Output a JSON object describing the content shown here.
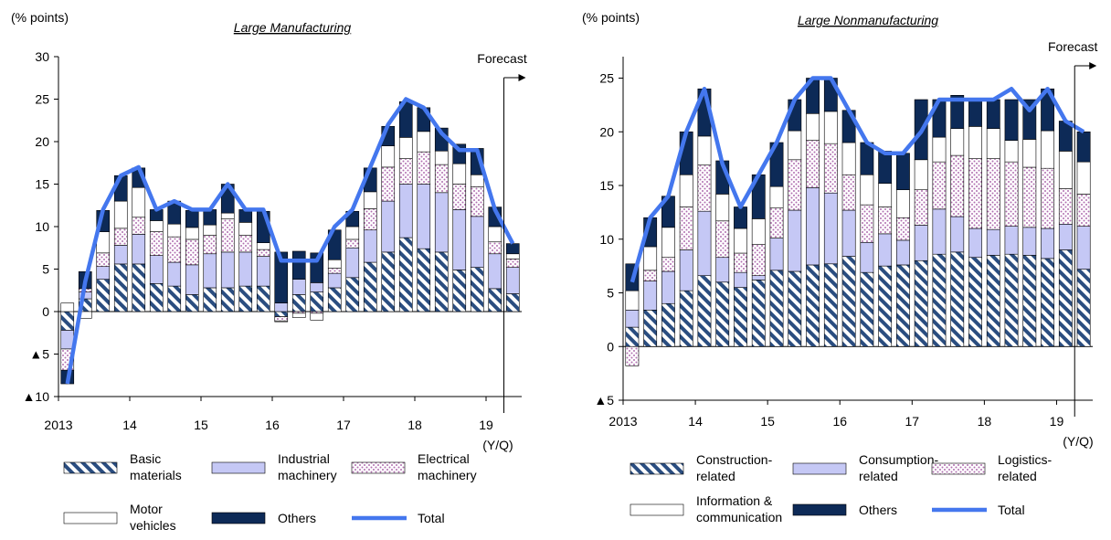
{
  "chart_data": [
    {
      "type": "bar",
      "stacked": true,
      "title": "Large Manufacturing",
      "ylabel": "(% points)",
      "xunit": "(Y/Q)",
      "ylim": [
        -10,
        30
      ],
      "yticks": [
        30,
        25,
        20,
        15,
        10,
        5,
        0,
        -5,
        -10
      ],
      "ytick_labels": [
        "30",
        "25",
        "20",
        "15",
        "10",
        "5",
        "0",
        "▲5",
        "▲10"
      ],
      "xticks": [
        {
          "label": "2013",
          "index": 0
        },
        {
          "label": "14",
          "index": 4
        },
        {
          "label": "15",
          "index": 8
        },
        {
          "label": "16",
          "index": 12
        },
        {
          "label": "17",
          "index": 16
        },
        {
          "label": "18",
          "index": 20
        },
        {
          "label": "19",
          "index": 24
        }
      ],
      "forecast_label": "Forecast",
      "forecast_start_index": 25,
      "categories": [
        "2013Q1",
        "2013Q2",
        "2013Q3",
        "2013Q4",
        "2014Q1",
        "2014Q2",
        "2014Q3",
        "2014Q4",
        "2015Q1",
        "2015Q2",
        "2015Q3",
        "2015Q4",
        "2016Q1",
        "2016Q2",
        "2016Q3",
        "2016Q4",
        "2017Q1",
        "2017Q2",
        "2017Q3",
        "2017Q4",
        "2018Q1",
        "2018Q2",
        "2018Q3",
        "2018Q4",
        "2019Q1",
        "2019Q2"
      ],
      "series": [
        {
          "name": "Basic\nmaterials",
          "key": "basic",
          "pattern": "hatch-navy",
          "values": [
            -2.2,
            1.5,
            3.8,
            5.6,
            5.6,
            3.3,
            3.0,
            2.0,
            2.8,
            2.8,
            3.0,
            3.0,
            -0.6,
            2.0,
            2.3,
            2.8,
            4.0,
            5.8,
            7.0,
            8.7,
            7.4,
            7.0,
            4.9,
            5.2,
            2.7,
            2.1
          ]
        },
        {
          "name": "Industrial\nmachinery",
          "key": "industrial",
          "pattern": "lavender",
          "values": [
            -2.2,
            0.8,
            1.5,
            2.2,
            3.5,
            3.3,
            2.8,
            3.5,
            4.0,
            4.2,
            4.0,
            3.5,
            1.0,
            1.8,
            1.1,
            1.7,
            3.5,
            3.8,
            6.0,
            6.3,
            7.6,
            7.0,
            7.1,
            6.0,
            4.1,
            3.1
          ]
        },
        {
          "name": "Electrical\nmachinery",
          "key": "electrical",
          "pattern": "dots",
          "values": [
            -2.5,
            0.4,
            1.6,
            2.0,
            2.0,
            2.8,
            3.0,
            3.0,
            2.2,
            3.9,
            2.0,
            0.8,
            -0.5,
            -0.2,
            -0.2,
            0.6,
            1.0,
            2.5,
            4.0,
            3.0,
            3.8,
            3.3,
            3.0,
            3.5,
            1.4,
            1.0
          ]
        },
        {
          "name": "Motor\nvehicles",
          "key": "motor",
          "pattern": "white",
          "values": [
            1.0,
            -0.8,
            2.5,
            3.2,
            3.5,
            1.3,
            1.5,
            1.4,
            1.2,
            0.7,
            1.5,
            0.8,
            -0.1,
            -0.5,
            -0.8,
            1.0,
            1.5,
            2.0,
            2.5,
            2.5,
            2.4,
            1.6,
            2.4,
            1.4,
            1.8,
            0.6
          ]
        },
        {
          "name": "Others",
          "key": "others",
          "pattern": "navy",
          "values": [
            -1.6,
            2.0,
            2.5,
            3.0,
            2.3,
            1.3,
            2.7,
            2.0,
            1.8,
            3.4,
            1.5,
            3.7,
            6.0,
            3.3,
            3.5,
            3.5,
            1.8,
            2.8,
            2.3,
            4.2,
            2.8,
            2.7,
            2.3,
            3.1,
            2.3,
            1.2
          ]
        }
      ],
      "total": {
        "name": "Total",
        "values": [
          -8.5,
          3.5,
          12.0,
          16.0,
          17.0,
          12.0,
          13.0,
          12.0,
          12.0,
          15.0,
          12.0,
          12.0,
          6.0,
          6.0,
          6.0,
          10.0,
          12.0,
          17.0,
          22.0,
          25.0,
          24.0,
          21.0,
          19.0,
          19.0,
          12.0,
          8.0
        ]
      },
      "legend": [
        "Basic\nmaterials",
        "Industrial\nmachinery",
        "Electrical\nmachinery",
        "Motor\nvehicles",
        "Others",
        "Total"
      ],
      "colors": {
        "navy": "#0d2a57",
        "lavender": "#c5c8f5",
        "dots": "#b070b0",
        "line": "#4477ee",
        "hatch": "#2a4d80"
      }
    },
    {
      "type": "bar",
      "stacked": true,
      "title": "Large Nonmanufacturing",
      "ylabel": "(% points)",
      "xunit": "(Y/Q)",
      "ylim": [
        -5,
        27
      ],
      "yticks": [
        25,
        20,
        15,
        10,
        5,
        0,
        -5
      ],
      "ytick_labels": [
        "25",
        "20",
        "15",
        "10",
        "5",
        "0",
        "▲5"
      ],
      "xticks": [
        {
          "label": "2013",
          "index": 0
        },
        {
          "label": "14",
          "index": 4
        },
        {
          "label": "15",
          "index": 8
        },
        {
          "label": "16",
          "index": 12
        },
        {
          "label": "17",
          "index": 16
        },
        {
          "label": "18",
          "index": 20
        },
        {
          "label": "19",
          "index": 24
        }
      ],
      "forecast_label": "Forecast",
      "forecast_start_index": 25,
      "categories": [
        "2013Q1",
        "2013Q2",
        "2013Q3",
        "2013Q4",
        "2014Q1",
        "2014Q2",
        "2014Q3",
        "2014Q4",
        "2015Q1",
        "2015Q2",
        "2015Q3",
        "2015Q4",
        "2016Q1",
        "2016Q2",
        "2016Q3",
        "2016Q4",
        "2017Q1",
        "2017Q2",
        "2017Q3",
        "2017Q4",
        "2018Q1",
        "2018Q2",
        "2018Q3",
        "2018Q4",
        "2019Q1",
        "2019Q2"
      ],
      "series": [
        {
          "name": "Construction-\nrelated",
          "key": "construction",
          "pattern": "hatch-navy",
          "values": [
            1.8,
            3.4,
            4.0,
            5.2,
            6.6,
            6.0,
            5.5,
            6.2,
            7.1,
            7.0,
            7.6,
            7.7,
            8.4,
            6.9,
            7.5,
            7.6,
            8.0,
            8.6,
            8.8,
            8.3,
            8.5,
            8.6,
            8.5,
            8.2,
            9.0,
            7.2
          ]
        },
        {
          "name": "Consumption-\nrelated",
          "key": "consumption",
          "pattern": "lavender",
          "values": [
            1.6,
            2.7,
            3.0,
            3.8,
            6.0,
            2.3,
            1.4,
            0.4,
            3.0,
            5.7,
            7.2,
            6.6,
            4.3,
            2.8,
            3.0,
            2.3,
            3.3,
            4.2,
            3.3,
            2.7,
            2.4,
            2.6,
            2.6,
            2.8,
            2.4,
            4.0
          ]
        },
        {
          "name": "Logistics-\nrelated",
          "key": "logistics",
          "pattern": "dots",
          "values": [
            -1.8,
            1.0,
            1.3,
            4.0,
            4.3,
            3.4,
            1.8,
            2.9,
            2.8,
            4.7,
            4.4,
            4.6,
            3.3,
            3.5,
            2.5,
            2.1,
            3.3,
            4.4,
            5.7,
            6.5,
            6.6,
            6.0,
            5.6,
            5.6,
            3.3,
            3.0
          ]
        },
        {
          "name": "Information &\ncommunication",
          "key": "info",
          "pattern": "white",
          "values": [
            1.8,
            2.2,
            2.8,
            3.0,
            2.7,
            2.5,
            2.3,
            2.4,
            2.0,
            2.7,
            2.5,
            3.0,
            3.0,
            2.8,
            2.2,
            2.6,
            2.8,
            2.3,
            2.5,
            3.0,
            2.8,
            2.0,
            2.6,
            3.5,
            3.5,
            3.0
          ]
        },
        {
          "name": "Others",
          "key": "others",
          "pattern": "navy",
          "values": [
            2.5,
            2.7,
            2.9,
            4.0,
            4.4,
            3.1,
            2.0,
            4.1,
            4.1,
            2.9,
            3.3,
            3.1,
            3.0,
            3.0,
            3.0,
            3.4,
            5.6,
            3.5,
            3.1,
            2.5,
            2.7,
            3.8,
            3.7,
            3.9,
            2.8,
            2.8
          ]
        }
      ],
      "total": {
        "name": "Total",
        "values": [
          6.0,
          12.0,
          14.0,
          20.0,
          24.0,
          17.0,
          13.0,
          16.0,
          19.0,
          23.0,
          25.0,
          25.0,
          22.0,
          19.0,
          18.0,
          18.0,
          20.0,
          23.0,
          23.0,
          23.0,
          23.0,
          24.0,
          22.0,
          24.0,
          21.0,
          20.0
        ]
      },
      "legend": [
        "Construction-\nrelated",
        "Consumption-\nrelated",
        "Logistics-\nrelated",
        "Information &\ncommunication",
        "Others",
        "Total"
      ],
      "colors": {
        "navy": "#0d2a57",
        "lavender": "#c5c8f5",
        "dots": "#b070b0",
        "line": "#4477ee",
        "hatch": "#2a4d80"
      }
    }
  ]
}
